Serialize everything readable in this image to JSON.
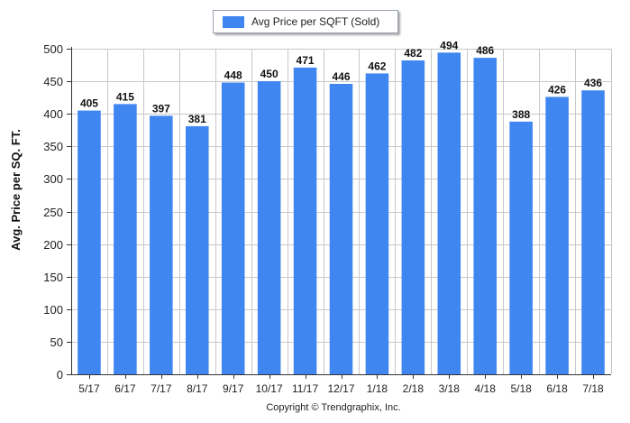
{
  "chart_data": {
    "type": "bar",
    "categories": [
      "5/17",
      "6/17",
      "7/17",
      "8/17",
      "9/17",
      "10/17",
      "11/17",
      "12/17",
      "1/18",
      "2/18",
      "3/18",
      "4/18",
      "5/18",
      "6/18",
      "7/18"
    ],
    "series": [
      {
        "name": "Avg Price per SQFT (Sold)",
        "values": [
          405,
          415,
          397,
          381,
          448,
          450,
          471,
          446,
          462,
          482,
          494,
          486,
          388,
          426,
          436
        ]
      }
    ],
    "ylabel": "Avg. Price per SQ. FT.",
    "xlabel": "Copyright © Trendgraphix, Inc.",
    "ylim": [
      0,
      500
    ],
    "yticks": [
      0,
      50,
      100,
      150,
      200,
      250,
      300,
      350,
      400,
      450,
      500
    ],
    "grid": true,
    "legend_position": "top-center",
    "bar_color": "#3f86f0"
  }
}
